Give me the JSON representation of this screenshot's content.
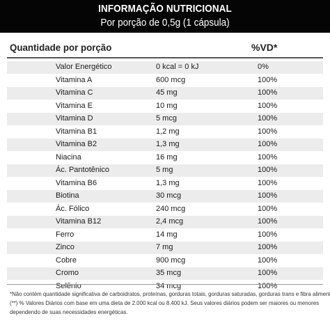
{
  "header": {
    "title": "INFORMAÇÃO NUTRICIONAL",
    "subtitle": "Por porção de 0,5g (1 cápsula)"
  },
  "columns": {
    "left": "Quantidade por porção",
    "right": "%VD*"
  },
  "rows": [
    {
      "name": "Valor Energético",
      "qty": "0 kcal = 0 kJ",
      "vd": "0%"
    },
    {
      "name": "Vitamina A",
      "qty": "600 mcg",
      "vd": "100%"
    },
    {
      "name": "Vitamina C",
      "qty": "45 mg",
      "vd": "100%"
    },
    {
      "name": "Vitamina E",
      "qty": "10 mg",
      "vd": "100%"
    },
    {
      "name": "Vitamina D",
      "qty": "5 mcg",
      "vd": "100%"
    },
    {
      "name": "Vitamina B1",
      "qty": "1,2 mg",
      "vd": "100%"
    },
    {
      "name": "Vitamina B2",
      "qty": "1,3 mg",
      "vd": "100%"
    },
    {
      "name": "Niacina",
      "qty": "16 mg",
      "vd": "100%"
    },
    {
      "name": "Ác. Pantotênico",
      "qty": "5 mg",
      "vd": "100%"
    },
    {
      "name": "Vitamina B6",
      "qty": "1,3 mg",
      "vd": "100%"
    },
    {
      "name": "Biotina",
      "qty": "30 mcg",
      "vd": "100%"
    },
    {
      "name": "Ác. Fólico",
      "qty": "240 mcg",
      "vd": "100%"
    },
    {
      "name": "Vitamina B12",
      "qty": "2,4 mcg",
      "vd": "100%"
    },
    {
      "name": "Ferro",
      "qty": "14 mg",
      "vd": "100%"
    },
    {
      "name": "Zinco",
      "qty": "7 mg",
      "vd": "100%"
    },
    {
      "name": "Cobre",
      "qty": "900 mcg",
      "vd": "100%"
    },
    {
      "name": "Cromo",
      "qty": "35 mcg",
      "vd": "100%"
    },
    {
      "name": "Selênio",
      "qty": "34 mcg",
      "vd": "100%"
    }
  ],
  "footnotes": {
    "line1": "*Não contém quantidade significativa de carboidratos, proteínas, gorduras totais, gorduras saturadas, gorduras trans e fibra alimentar.",
    "line2": "(**) % Valores Diários com base em uma dieta de 2.000 kcal ou 8.400 kJ. Seus valores diários podem ser maiores ou menores",
    "line3": "dependendo de suas necessidades energéticas."
  },
  "colors": {
    "header_bg": "#050505",
    "header_text": "#ffffff",
    "stripe": "#ececec"
  }
}
